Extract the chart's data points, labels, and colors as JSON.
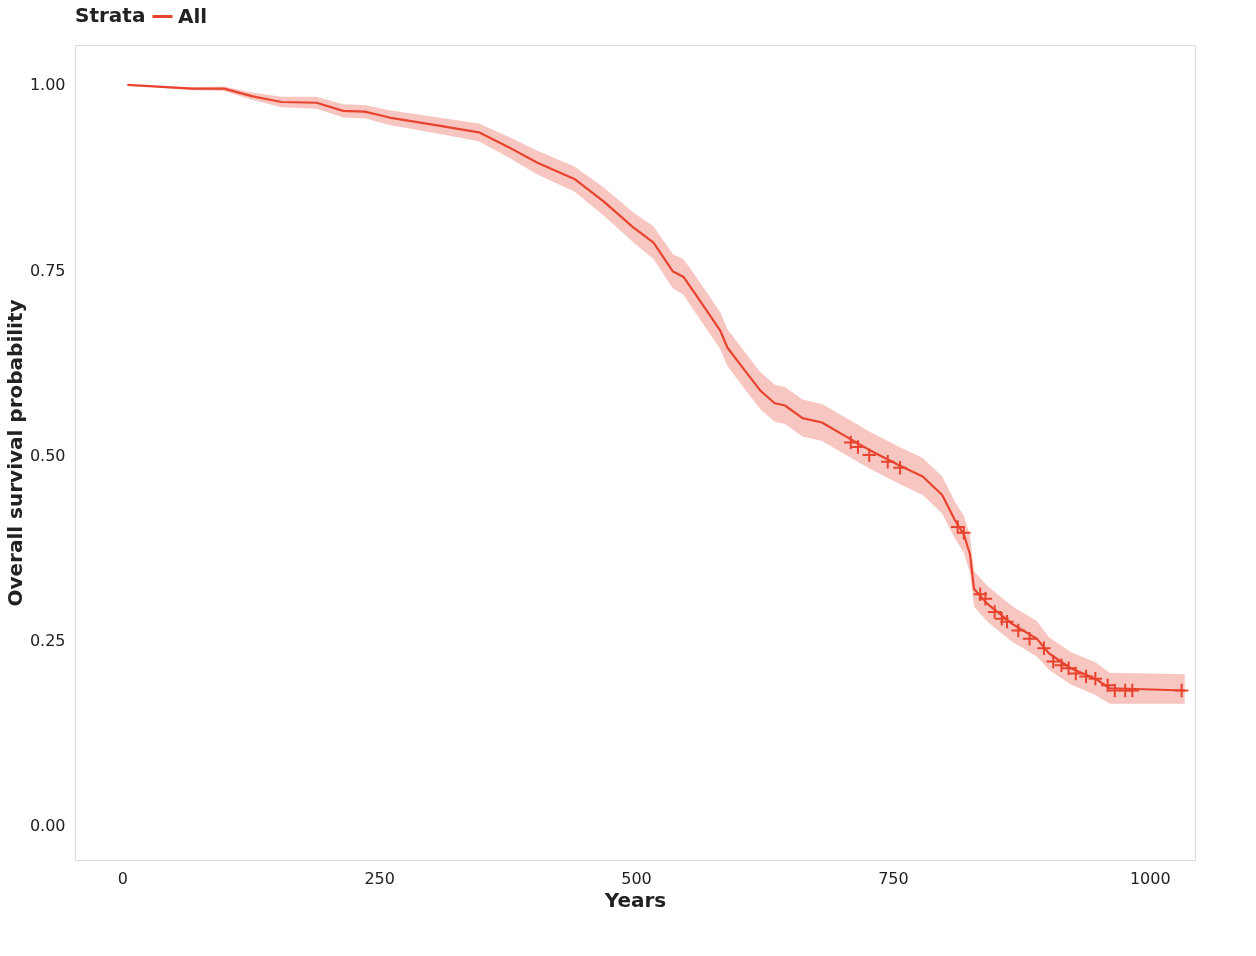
{
  "chart_data": {
    "type": "line",
    "xlabel": "Years",
    "ylabel": "Overall survival probability",
    "legend_title": "Strata",
    "legend": "top",
    "xlim": [
      -46,
      1044
    ],
    "ylim": [
      -0.047,
      1.054
    ],
    "xticks": [
      0,
      250,
      500,
      750,
      1000
    ],
    "yticks": [
      {
        "value": 0,
        "label": "0.00"
      },
      {
        "value": 0.25,
        "label": "0.25"
      },
      {
        "value": 0.5,
        "label": "0.50"
      },
      {
        "value": 0.75,
        "label": "0.75"
      },
      {
        "value": 1,
        "label": "1.00"
      }
    ],
    "grid": false,
    "line_style": "solid",
    "series": [
      {
        "name": "All",
        "color": "#e8432f",
        "marker": "none",
        "x": [
          5,
          68,
          99,
          126,
          155,
          189,
          215,
          236,
          260,
          308,
          347,
          376,
          404,
          440,
          469,
          497,
          517,
          536,
          546,
          558,
          582,
          589,
          606,
          621,
          635,
          645,
          662,
          681,
          702,
          727,
          755,
          779,
          798,
          810,
          819,
          825,
          829,
          842,
          866,
          890,
          902,
          923,
          947,
          961,
          1034
        ],
        "values": [
          1.0,
          0.995,
          0.995,
          0.985,
          0.977,
          0.976,
          0.965,
          0.964,
          0.956,
          0.945,
          0.936,
          0.916,
          0.895,
          0.873,
          0.842,
          0.808,
          0.787,
          0.748,
          0.741,
          0.717,
          0.668,
          0.645,
          0.614,
          0.587,
          0.57,
          0.567,
          0.55,
          0.544,
          0.527,
          0.507,
          0.487,
          0.471,
          0.446,
          0.413,
          0.393,
          0.366,
          0.319,
          0.299,
          0.272,
          0.252,
          0.232,
          0.212,
          0.198,
          0.185,
          0.182
        ],
        "lower": [
          1.0,
          0.993,
          0.992,
          0.98,
          0.97,
          0.968,
          0.956,
          0.955,
          0.946,
          0.934,
          0.924,
          0.902,
          0.879,
          0.856,
          0.823,
          0.788,
          0.765,
          0.725,
          0.717,
          0.692,
          0.643,
          0.62,
          0.589,
          0.562,
          0.545,
          0.542,
          0.525,
          0.519,
          0.502,
          0.482,
          0.462,
          0.446,
          0.421,
          0.388,
          0.368,
          0.341,
          0.295,
          0.275,
          0.248,
          0.228,
          0.21,
          0.19,
          0.176,
          0.164,
          0.164
        ],
        "upper": [
          1.0,
          0.997,
          0.998,
          0.99,
          0.984,
          0.984,
          0.974,
          0.973,
          0.966,
          0.956,
          0.948,
          0.93,
          0.911,
          0.89,
          0.861,
          0.828,
          0.809,
          0.771,
          0.765,
          0.742,
          0.693,
          0.67,
          0.639,
          0.612,
          0.595,
          0.592,
          0.575,
          0.569,
          0.552,
          0.532,
          0.512,
          0.496,
          0.471,
          0.438,
          0.418,
          0.391,
          0.343,
          0.323,
          0.296,
          0.276,
          0.254,
          0.234,
          0.22,
          0.206,
          0.204
        ]
      },
      {
        "type": "scatter",
        "color": "#e8432f",
        "marker": "cross",
        "x": [
          709,
          716,
          727,
          745,
          757,
          813,
          819,
          835,
          840,
          849,
          856,
          861,
          872,
          883,
          897,
          906,
          914,
          921,
          928,
          938,
          947,
          959,
          966,
          976,
          983,
          1031
        ],
        "values": [
          0.517,
          0.511,
          0.5,
          0.491,
          0.483,
          0.403,
          0.395,
          0.312,
          0.306,
          0.288,
          0.279,
          0.275,
          0.263,
          0.252,
          0.239,
          0.221,
          0.216,
          0.212,
          0.205,
          0.201,
          0.198,
          0.189,
          0.182,
          0.182,
          0.182,
          0.182
        ]
      }
    ]
  }
}
